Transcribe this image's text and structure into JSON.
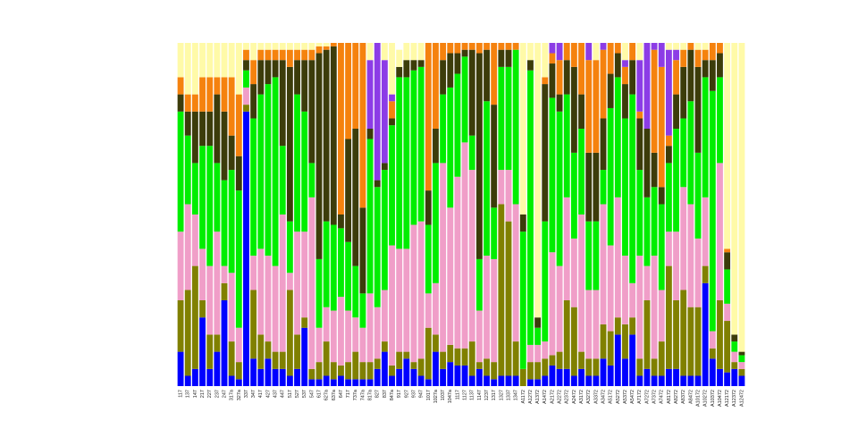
{
  "chart_data": {
    "type": "stacked-bar",
    "categories": [
      "117",
      "137",
      "147",
      "217",
      "227",
      "237",
      "247",
      "317a",
      "327a",
      "337",
      "347",
      "417",
      "427",
      "437",
      "447",
      "517",
      "527",
      "537",
      "547",
      "617",
      "627a",
      "637a",
      "647",
      "717",
      "737a",
      "747a",
      "817a",
      "827",
      "837",
      "847a",
      "917",
      "927",
      "937",
      "947",
      "1017",
      "1027a",
      "1037",
      "1047a",
      "1117",
      "1127",
      "1137",
      "1147",
      "1237",
      "1317",
      "1327",
      "1337",
      "1347",
      "A1172",
      "A1272",
      "A1372",
      "A1472",
      "A2172",
      "A2272",
      "A2372",
      "A2472",
      "A3172",
      "A3272",
      "A3372",
      "A3472",
      "A5172",
      "A5272",
      "A5372",
      "A5472",
      "A7172",
      "A7272",
      "A7372",
      "A7472",
      "A8172",
      "A8272",
      "A8372",
      "A8472",
      "A10172",
      "A10272",
      "A10372",
      "A10472",
      "A12172",
      "A12372",
      "A12472"
    ],
    "ylim": [
      0,
      100
    ],
    "series": [
      {
        "color": "#0000ff",
        "values": [
          10,
          3,
          5,
          20,
          5,
          10,
          25,
          3,
          2,
          80,
          8,
          5,
          8,
          5,
          5,
          3,
          5,
          17,
          2,
          2,
          3,
          2,
          3,
          2,
          2,
          2,
          2,
          5,
          10,
          3,
          5,
          8,
          5,
          3,
          2,
          10,
          5,
          7,
          6,
          6,
          3,
          5,
          3,
          2,
          3,
          3,
          3,
          0,
          2,
          2,
          3,
          6,
          5,
          5,
          3,
          5,
          3,
          3,
          8,
          6,
          15,
          8,
          15,
          3,
          5,
          3,
          3,
          5,
          5,
          3,
          3,
          3,
          30,
          8,
          5,
          4,
          5,
          3
        ]
      },
      {
        "color": "#808000",
        "values": [
          15,
          25,
          30,
          5,
          10,
          5,
          5,
          10,
          5,
          2,
          20,
          10,
          5,
          5,
          5,
          25,
          10,
          3,
          3,
          5,
          10,
          5,
          3,
          5,
          8,
          5,
          5,
          3,
          3,
          3,
          5,
          2,
          2,
          5,
          15,
          5,
          5,
          5,
          5,
          5,
          10,
          2,
          5,
          5,
          50,
          45,
          10,
          5,
          5,
          5,
          5,
          3,
          5,
          20,
          20,
          5,
          5,
          5,
          10,
          10,
          5,
          10,
          5,
          5,
          20,
          5,
          10,
          30,
          20,
          25,
          20,
          20,
          5,
          3,
          20,
          15,
          2,
          2
        ]
      },
      {
        "color": "#f09ec8",
        "values": [
          20,
          25,
          15,
          15,
          20,
          30,
          5,
          20,
          10,
          5,
          10,
          25,
          25,
          25,
          40,
          5,
          30,
          25,
          50,
          10,
          10,
          15,
          20,
          15,
          10,
          10,
          20,
          15,
          15,
          35,
          30,
          30,
          40,
          40,
          10,
          15,
          55,
          40,
          50,
          60,
          50,
          15,
          30,
          30,
          10,
          15,
          40,
          0,
          5,
          5,
          5,
          30,
          25,
          30,
          20,
          40,
          20,
          20,
          35,
          25,
          35,
          20,
          10,
          30,
          10,
          30,
          15,
          10,
          20,
          30,
          30,
          20,
          20,
          5,
          40,
          5,
          3,
          2
        ]
      },
      {
        "color": "#00ee00",
        "values": [
          35,
          20,
          15,
          30,
          35,
          20,
          25,
          30,
          40,
          5,
          40,
          45,
          50,
          55,
          20,
          15,
          40,
          35,
          10,
          20,
          25,
          25,
          20,
          20,
          15,
          10,
          45,
          35,
          35,
          35,
          50,
          50,
          45,
          45,
          20,
          35,
          20,
          35,
          30,
          25,
          10,
          15,
          45,
          15,
          30,
          30,
          45,
          40,
          80,
          5,
          35,
          45,
          45,
          30,
          25,
          25,
          20,
          20,
          10,
          40,
          35,
          40,
          55,
          25,
          20,
          20,
          25,
          20,
          30,
          20,
          30,
          25,
          35,
          70,
          25,
          10,
          3,
          2
        ]
      },
      {
        "color": "#3c3c0a",
        "values": [
          5,
          7,
          15,
          10,
          10,
          20,
          20,
          10,
          10,
          3,
          10,
          10,
          7,
          5,
          25,
          45,
          10,
          15,
          30,
          60,
          50,
          52,
          4,
          30,
          40,
          25,
          3,
          2,
          2,
          2,
          3,
          5,
          3,
          2,
          10,
          10,
          10,
          10,
          6,
          2,
          25,
          60,
          15,
          30,
          5,
          5,
          0,
          5,
          3,
          3,
          40,
          10,
          5,
          10,
          25,
          10,
          20,
          20,
          15,
          10,
          7,
          10,
          10,
          15,
          20,
          10,
          5,
          5,
          10,
          15,
          15,
          25,
          5,
          9,
          7,
          5,
          2,
          1
        ]
      },
      {
        "color": "#f5820e",
        "values": [
          5,
          5,
          5,
          10,
          10,
          5,
          10,
          17,
          18,
          3,
          7,
          3,
          3,
          3,
          3,
          5,
          3,
          3,
          3,
          2,
          1,
          1,
          50,
          28,
          25,
          48,
          0,
          0,
          0,
          5,
          0,
          0,
          0,
          0,
          43,
          25,
          5,
          3,
          3,
          2,
          2,
          3,
          2,
          18,
          2,
          2,
          2,
          0,
          0,
          0,
          2,
          3,
          10,
          5,
          7,
          15,
          27,
          27,
          20,
          9,
          3,
          5,
          5,
          2,
          0,
          30,
          35,
          3,
          10,
          5,
          2,
          5,
          3,
          5,
          3,
          1,
          0,
          0
        ]
      },
      {
        "color": "#8c3ce6",
        "values": [
          0,
          0,
          0,
          0,
          0,
          0,
          0,
          0,
          0,
          0,
          0,
          0,
          0,
          0,
          0,
          0,
          0,
          0,
          0,
          0,
          0,
          0,
          0,
          0,
          0,
          0,
          20,
          40,
          30,
          2,
          0,
          0,
          0,
          0,
          0,
          0,
          0,
          0,
          0,
          0,
          0,
          0,
          0,
          0,
          0,
          0,
          0,
          0,
          0,
          0,
          0,
          3,
          5,
          0,
          0,
          0,
          5,
          0,
          2,
          0,
          0,
          2,
          0,
          15,
          25,
          2,
          7,
          25,
          3,
          0,
          0,
          0,
          0,
          0,
          0,
          0,
          0,
          0
        ]
      },
      {
        "color": "#fffaa8",
        "values": [
          10,
          15,
          15,
          10,
          10,
          10,
          10,
          10,
          15,
          2,
          5,
          2,
          2,
          2,
          2,
          2,
          2,
          2,
          2,
          1,
          1,
          0,
          0,
          0,
          0,
          0,
          5,
          0,
          5,
          15,
          5,
          5,
          5,
          5,
          0,
          0,
          0,
          0,
          0,
          0,
          0,
          0,
          0,
          0,
          0,
          0,
          0,
          50,
          5,
          80,
          10,
          0,
          0,
          0,
          0,
          0,
          0,
          5,
          0,
          0,
          0,
          5,
          0,
          5,
          0,
          0,
          0,
          2,
          2,
          2,
          0,
          2,
          2,
          0,
          0,
          60,
          85,
          90
        ]
      }
    ]
  }
}
